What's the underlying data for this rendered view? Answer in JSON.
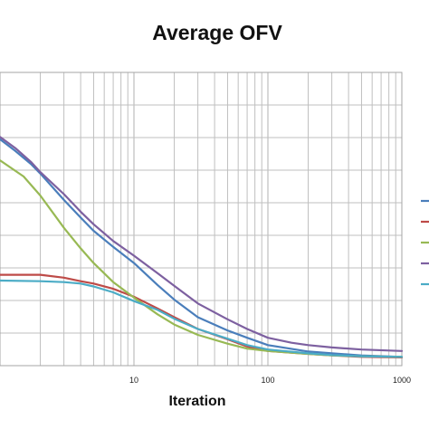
{
  "chart_data": {
    "type": "line",
    "title": "Average OFV",
    "xlabel": "Iteration",
    "ylabel": "",
    "x_scale": "log",
    "xlim": [
      1,
      1000
    ],
    "x_tick_labels": [
      {
        "value": 10,
        "label": "10"
      },
      {
        "value": 100,
        "label": "100"
      },
      {
        "value": 1000,
        "label": "1000"
      }
    ],
    "ylim": [
      0,
      1
    ],
    "y_tick_labels": [],
    "grid": true,
    "legend": "right",
    "series": [
      {
        "color": "#4a7ebb",
        "x": [
          1,
          1.3,
          1.7,
          2,
          3,
          4,
          5,
          7,
          10,
          15,
          20,
          30,
          50,
          70,
          100,
          200,
          300,
          500,
          1000
        ],
        "y": [
          0.772,
          0.732,
          0.688,
          0.655,
          0.565,
          0.505,
          0.46,
          0.405,
          0.35,
          0.275,
          0.225,
          0.165,
          0.12,
          0.095,
          0.07,
          0.048,
          0.042,
          0.035,
          0.03
        ]
      },
      {
        "color": "#be4b48",
        "x": [
          1,
          2,
          3,
          4,
          5,
          7,
          10,
          15,
          20,
          30,
          50,
          70,
          100,
          200,
          300,
          500,
          1000
        ],
        "y": [
          0.31,
          0.31,
          0.3,
          0.288,
          0.28,
          0.262,
          0.235,
          0.195,
          0.165,
          0.125,
          0.09,
          0.065,
          0.05,
          0.04,
          0.035,
          0.03,
          0.028
        ]
      },
      {
        "color": "#98b954",
        "x": [
          1,
          1.5,
          2,
          3,
          4,
          5,
          7,
          10,
          15,
          20,
          30,
          50,
          70,
          100,
          200,
          300,
          500,
          1000
        ],
        "y": [
          0.7,
          0.645,
          0.58,
          0.47,
          0.4,
          0.35,
          0.285,
          0.232,
          0.175,
          0.14,
          0.105,
          0.075,
          0.058,
          0.05,
          0.04,
          0.035,
          0.032,
          0.03
        ]
      },
      {
        "color": "#7d60a0",
        "x": [
          1,
          1.3,
          1.7,
          2,
          3,
          4,
          5,
          7,
          10,
          15,
          20,
          30,
          50,
          70,
          100,
          150,
          200,
          300,
          500,
          1000
        ],
        "y": [
          0.78,
          0.742,
          0.695,
          0.66,
          0.585,
          0.525,
          0.482,
          0.425,
          0.375,
          0.315,
          0.272,
          0.212,
          0.158,
          0.125,
          0.095,
          0.078,
          0.07,
          0.062,
          0.055,
          0.05
        ]
      },
      {
        "color": "#4bacc6",
        "x": [
          1,
          2,
          3,
          4,
          5,
          7,
          10,
          15,
          20,
          30,
          50,
          70,
          100,
          200,
          300,
          500,
          1000
        ],
        "y": [
          0.29,
          0.288,
          0.285,
          0.28,
          0.27,
          0.25,
          0.22,
          0.19,
          0.16,
          0.125,
          0.092,
          0.07,
          0.055,
          0.042,
          0.036,
          0.032,
          0.03
        ]
      }
    ]
  }
}
